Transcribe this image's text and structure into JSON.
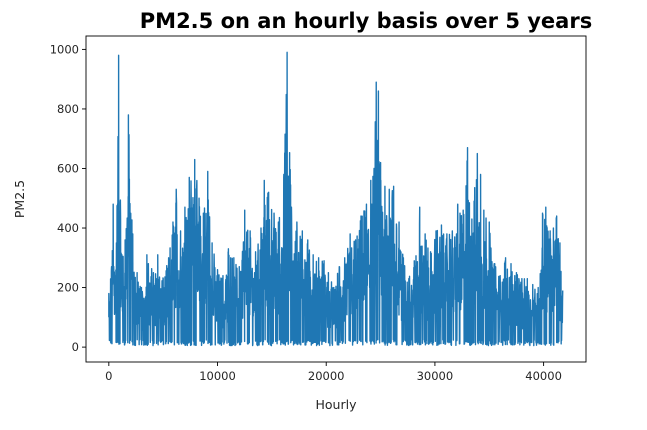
{
  "chart_data": {
    "type": "line",
    "title": "PM2.5 on an hourly basis over 5 years",
    "xlabel": "Hourly",
    "ylabel": "PM2.5",
    "xlim": [
      -2100,
      43900
    ],
    "ylim": [
      -50,
      1045
    ],
    "x_ticks": [
      0,
      10000,
      20000,
      30000,
      40000
    ],
    "y_ticks": [
      0,
      200,
      400,
      600,
      800,
      1000
    ],
    "grid": false,
    "legend": "none",
    "line_color": "#1f77b4",
    "series": [
      {
        "x_start": 0,
        "x_end": 41757,
        "peaks": [
          [
            0,
            180
          ],
          [
            250,
            270
          ],
          [
            400,
            480
          ],
          [
            700,
            350
          ],
          [
            900,
            980
          ],
          [
            1200,
            310
          ],
          [
            1500,
            360
          ],
          [
            1800,
            780
          ],
          [
            2200,
            380
          ],
          [
            2600,
            250
          ],
          [
            3000,
            200
          ],
          [
            3500,
            310
          ],
          [
            4100,
            250
          ],
          [
            4500,
            310
          ],
          [
            5000,
            230
          ],
          [
            5500,
            300
          ],
          [
            5900,
            420
          ],
          [
            6200,
            530
          ],
          [
            6600,
            390
          ],
          [
            7000,
            470
          ],
          [
            7400,
            570
          ],
          [
            7900,
            630
          ],
          [
            8300,
            500
          ],
          [
            8700,
            450
          ],
          [
            9100,
            590
          ],
          [
            9500,
            350
          ],
          [
            10000,
            260
          ],
          [
            10500,
            240
          ],
          [
            11000,
            330
          ],
          [
            11500,
            300
          ],
          [
            12000,
            270
          ],
          [
            12500,
            460
          ],
          [
            13000,
            390
          ],
          [
            13500,
            320
          ],
          [
            14000,
            400
          ],
          [
            14300,
            560
          ],
          [
            14700,
            520
          ],
          [
            15200,
            450
          ],
          [
            15600,
            420
          ],
          [
            16100,
            580
          ],
          [
            16400,
            990
          ],
          [
            16800,
            470
          ],
          [
            17300,
            420
          ],
          [
            17800,
            390
          ],
          [
            18300,
            360
          ],
          [
            18800,
            310
          ],
          [
            19300,
            300
          ],
          [
            19800,
            290
          ],
          [
            20200,
            250
          ],
          [
            20700,
            200
          ],
          [
            21200,
            270
          ],
          [
            21700,
            300
          ],
          [
            22200,
            380
          ],
          [
            22700,
            360
          ],
          [
            23200,
            440
          ],
          [
            23700,
            480
          ],
          [
            24100,
            560
          ],
          [
            24400,
            600
          ],
          [
            24600,
            890
          ],
          [
            24800,
            860
          ],
          [
            25000,
            620
          ],
          [
            25400,
            540
          ],
          [
            25800,
            530
          ],
          [
            26200,
            540
          ],
          [
            26700,
            420
          ],
          [
            27100,
            300
          ],
          [
            27600,
            230
          ],
          [
            28100,
            290
          ],
          [
            28600,
            470
          ],
          [
            29100,
            380
          ],
          [
            29600,
            320
          ],
          [
            30100,
            390
          ],
          [
            30600,
            410
          ],
          [
            31100,
            380
          ],
          [
            31600,
            390
          ],
          [
            32100,
            480
          ],
          [
            32600,
            460
          ],
          [
            33000,
            670
          ],
          [
            33400,
            430
          ],
          [
            33900,
            650
          ],
          [
            34200,
            580
          ],
          [
            34500,
            460
          ],
          [
            35000,
            420
          ],
          [
            35500,
            280
          ],
          [
            36000,
            240
          ],
          [
            36500,
            300
          ],
          [
            37000,
            280
          ],
          [
            37500,
            250
          ],
          [
            38000,
            230
          ],
          [
            38500,
            230
          ],
          [
            39000,
            210
          ],
          [
            39500,
            200
          ],
          [
            39900,
            450
          ],
          [
            40200,
            470
          ],
          [
            40600,
            390
          ],
          [
            40900,
            400
          ],
          [
            41200,
            440
          ],
          [
            41500,
            350
          ],
          [
            41757,
            190
          ]
        ]
      }
    ]
  }
}
